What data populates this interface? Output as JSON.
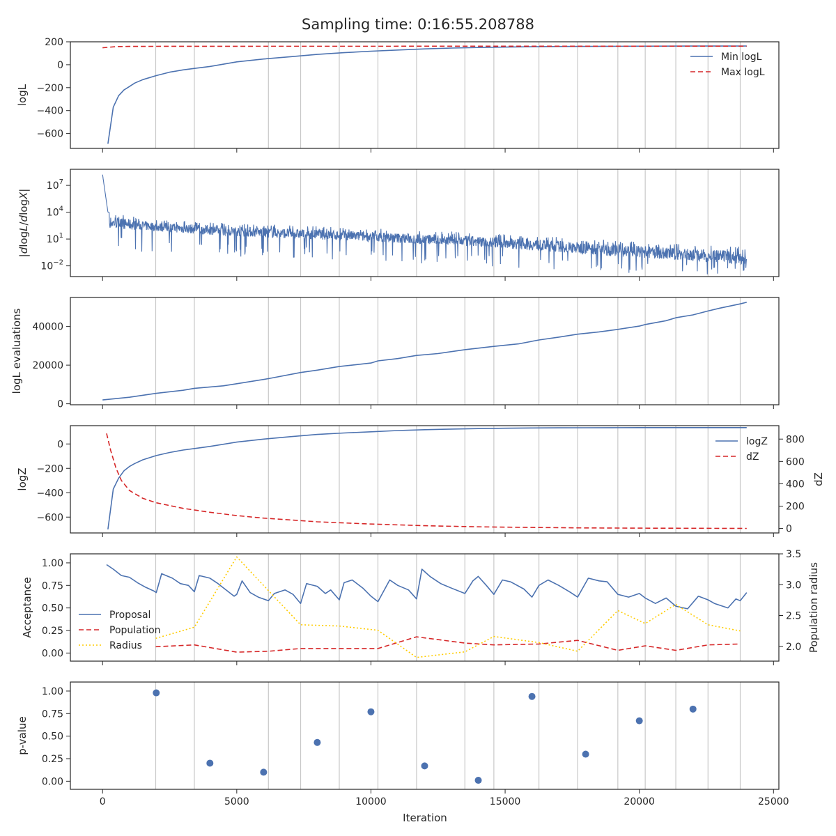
{
  "title": "Sampling time: 0:16:55.208788",
  "colors": {
    "blue": "#4c72b0",
    "red": "#d62728",
    "yellow": "#ffcc00",
    "insertion_line": "#c8c8c8",
    "axis": "#262626"
  },
  "x_axis": {
    "label": "Iteration",
    "lim": [
      -1200,
      25200
    ],
    "ticks": [
      0,
      5000,
      10000,
      15000,
      20000,
      25000
    ],
    "tick_labels": [
      "0",
      "5000",
      "10000",
      "15000",
      "20000",
      "25000"
    ]
  },
  "insertion_iterations": [
    1980,
    3420,
    6180,
    7380,
    8820,
    10260,
    11700,
    13500,
    14580,
    16260,
    17700,
    19200,
    20220,
    21360,
    22560,
    23760
  ],
  "chart_data": [
    {
      "type": "line",
      "panel": "logL",
      "ylabel": "logL",
      "ylim": [
        -730,
        200
      ],
      "yticks": [
        -600,
        -400,
        -200,
        0,
        200
      ],
      "ytick_labels": [
        "−600",
        "−400",
        "−200",
        "0",
        "200"
      ],
      "legend": "top-right",
      "series": [
        {
          "name": "Min logL",
          "color": "blue",
          "style": "solid",
          "x": [
            200,
            400,
            600,
            800,
            1000,
            1200,
            1500,
            2000,
            2500,
            3000,
            3500,
            4000,
            5000,
            6000,
            7000,
            8000,
            9000,
            10000,
            11000,
            12000,
            13000,
            14000,
            15000,
            16000,
            17000,
            18000,
            19000,
            20000,
            21000,
            22000,
            23000,
            24000
          ],
          "y": [
            -690,
            -370,
            -270,
            -220,
            -190,
            -160,
            -130,
            -95,
            -65,
            -45,
            -30,
            -15,
            25,
            50,
            70,
            90,
            105,
            118,
            128,
            138,
            145,
            150,
            154,
            157,
            159,
            160,
            161,
            162,
            162.5,
            163,
            163,
            163
          ]
        },
        {
          "name": "Max logL",
          "color": "red",
          "style": "dashed",
          "x": [
            0,
            500,
            1000,
            3000,
            24000
          ],
          "y": [
            148,
            158,
            160,
            161,
            162
          ]
        }
      ]
    },
    {
      "type": "line",
      "panel": "dlogL/dlogX",
      "ylabel": "|dlogL/dlogX|",
      "scale": "log",
      "ylim_log10": [
        -3.2,
        8.8
      ],
      "yticks_log10": [
        -2,
        1,
        4,
        7
      ],
      "ytick_labels": [
        "10^-2",
        "10^1",
        "10^4",
        "10^7"
      ],
      "series": [
        {
          "name": "",
          "color": "blue",
          "style": "solid",
          "envelope_log10": {
            "x": [
              0,
              200,
              2000,
              5000,
              10000,
              15000,
              20000,
              24000
            ],
            "upper": [
              8.2,
              4.0,
              3.2,
              2.8,
              2.2,
              1.6,
              0.7,
              0.1
            ],
            "median": [
              5.5,
              2.8,
              2.3,
              1.8,
              1.2,
              0.5,
              -0.5,
              -1.2
            ],
            "lower": [
              1.0,
              0.0,
              -0.6,
              -1.0,
              -1.6,
              -2.2,
              -2.9,
              -3.0
            ]
          }
        }
      ]
    },
    {
      "type": "line",
      "panel": "logL evaluations",
      "ylabel": "logL evaluations",
      "ylim": [
        -500,
        55000
      ],
      "yticks": [
        0,
        20000,
        40000
      ],
      "ytick_labels": [
        "0",
        "20000",
        "40000"
      ],
      "series": [
        {
          "name": "",
          "color": "blue",
          "style": "solid",
          "x": [
            0,
            1000,
            2000,
            3000,
            3420,
            4500,
            5000,
            6180,
            7380,
            8000,
            8820,
            10000,
            10260,
            11000,
            11700,
            12500,
            13500,
            14580,
            15500,
            16260,
            17000,
            17700,
            18500,
            19200,
            20000,
            20220,
            21000,
            21360,
            22000,
            22560,
            23000,
            23760,
            24000
          ],
          "y": [
            2000,
            3400,
            5400,
            7000,
            8000,
            9300,
            10400,
            13000,
            16200,
            17400,
            19300,
            21100,
            22200,
            23400,
            25000,
            26000,
            28000,
            29700,
            31000,
            33000,
            34500,
            36000,
            37200,
            38500,
            40200,
            41000,
            43000,
            44500,
            46000,
            48000,
            49500,
            51700,
            52500
          ]
        }
      ]
    },
    {
      "type": "line",
      "panel": "logZ",
      "ylabel": "logZ",
      "ylim": [
        -730,
        150
      ],
      "yticks": [
        -600,
        -400,
        -200,
        0
      ],
      "ytick_labels": [
        "−600",
        "−400",
        "−200",
        "0"
      ],
      "y2label": "dZ",
      "y2lim": [
        -40,
        920
      ],
      "y2ticks": [
        0,
        200,
        400,
        600,
        800
      ],
      "y2tick_labels": [
        "0",
        "200",
        "400",
        "600",
        "800"
      ],
      "legend": "top-right",
      "series": [
        {
          "name": "logZ",
          "color": "blue",
          "style": "solid",
          "axis": "left",
          "x": [
            200,
            400,
            600,
            800,
            1000,
            1200,
            1500,
            2000,
            2500,
            3000,
            3500,
            4000,
            5000,
            6000,
            7000,
            8000,
            9000,
            10000,
            11000,
            12000,
            13000,
            14000,
            15000,
            16000,
            17000,
            18000,
            19000,
            20000,
            21000,
            22000,
            23000,
            24000
          ],
          "y": [
            -700,
            -370,
            -280,
            -220,
            -185,
            -160,
            -130,
            -95,
            -70,
            -50,
            -35,
            -20,
            15,
            40,
            60,
            78,
            90,
            100,
            110,
            117,
            122,
            126,
            129,
            131,
            132,
            133,
            133.5,
            134,
            134,
            134,
            134,
            134
          ]
        },
        {
          "name": "dZ",
          "color": "red",
          "style": "dashed",
          "axis": "right",
          "x": [
            150,
            300,
            500,
            700,
            1000,
            1500,
            2000,
            3000,
            4000,
            5000,
            6000,
            8000,
            10000,
            12000,
            14000,
            16000,
            18000,
            20000,
            22000,
            24000
          ],
          "y": [
            850,
            700,
            540,
            430,
            340,
            270,
            230,
            180,
            145,
            115,
            93,
            60,
            40,
            25,
            15,
            9,
            5,
            3,
            1.5,
            0.5
          ]
        }
      ]
    },
    {
      "type": "line",
      "panel": "acceptance",
      "ylabel": "Acceptance",
      "ylim": [
        -0.09,
        1.1
      ],
      "yticks": [
        0.0,
        0.25,
        0.5,
        0.75,
        1.0
      ],
      "ytick_labels": [
        "0.00",
        "0.25",
        "0.50",
        "0.75",
        "1.00"
      ],
      "y2label": "Population radius",
      "y2lim": [
        1.76,
        3.5
      ],
      "y2ticks": [
        2.0,
        2.5,
        3.0,
        3.5
      ],
      "y2tick_labels": [
        "2.0",
        "2.5",
        "3.0",
        "3.5"
      ],
      "legend": "center-left",
      "series": [
        {
          "name": "Proposal",
          "color": "blue",
          "style": "solid",
          "axis": "left",
          "x": [
            150,
            400,
            700,
            1000,
            1300,
            1600,
            1900,
            2000,
            2200,
            2600,
            2900,
            3200,
            3420,
            3600,
            4000,
            4300,
            4600,
            4900,
            5000,
            5200,
            5500,
            5800,
            6180,
            6400,
            6800,
            7100,
            7380,
            7600,
            8000,
            8300,
            8500,
            8820,
            9000,
            9300,
            9700,
            10000,
            10260,
            10700,
            11000,
            11400,
            11700,
            11900,
            12200,
            12600,
            13000,
            13500,
            13800,
            14000,
            14300,
            14580,
            14900,
            15200,
            15700,
            16000,
            16260,
            16600,
            17000,
            17400,
            17700,
            18100,
            18500,
            18800,
            19200,
            19600,
            20000,
            20220,
            20600,
            21000,
            21360,
            21800,
            22200,
            22560,
            22800,
            23300,
            23600,
            23760,
            24000
          ],
          "y": [
            0.98,
            0.93,
            0.86,
            0.84,
            0.78,
            0.73,
            0.69,
            0.67,
            0.88,
            0.83,
            0.77,
            0.75,
            0.68,
            0.86,
            0.83,
            0.77,
            0.7,
            0.63,
            0.65,
            0.8,
            0.67,
            0.62,
            0.58,
            0.66,
            0.7,
            0.65,
            0.55,
            0.77,
            0.74,
            0.66,
            0.7,
            0.59,
            0.78,
            0.81,
            0.72,
            0.63,
            0.57,
            0.81,
            0.75,
            0.7,
            0.6,
            0.93,
            0.85,
            0.77,
            0.72,
            0.66,
            0.8,
            0.85,
            0.75,
            0.65,
            0.81,
            0.79,
            0.71,
            0.62,
            0.75,
            0.81,
            0.75,
            0.68,
            0.62,
            0.83,
            0.8,
            0.79,
            0.65,
            0.62,
            0.66,
            0.61,
            0.55,
            0.61,
            0.52,
            0.49,
            0.63,
            0.59,
            0.55,
            0.5,
            0.6,
            0.58,
            0.67
          ]
        },
        {
          "name": "Population",
          "color": "red",
          "style": "dashed",
          "axis": "left",
          "x": [
            1980,
            3420,
            5000,
            6180,
            7380,
            8820,
            10260,
            11700,
            13500,
            14580,
            16260,
            17700,
            19200,
            20220,
            21360,
            22560,
            23760
          ],
          "y": [
            0.07,
            0.09,
            0.01,
            0.02,
            0.05,
            0.05,
            0.05,
            0.18,
            0.11,
            0.09,
            0.1,
            0.14,
            0.03,
            0.08,
            0.03,
            0.09,
            0.1
          ]
        },
        {
          "name": "Radius",
          "color": "yellow",
          "style": "dotted",
          "axis": "right",
          "x": [
            1980,
            3420,
            5000,
            7380,
            8820,
            10260,
            11700,
            13500,
            14580,
            16260,
            17700,
            19200,
            20220,
            21360,
            22560,
            23760
          ],
          "y": [
            2.13,
            2.31,
            3.45,
            2.35,
            2.33,
            2.26,
            1.82,
            1.91,
            2.16,
            2.06,
            1.92,
            2.58,
            2.37,
            2.68,
            2.35,
            2.25
          ]
        }
      ]
    },
    {
      "type": "scatter",
      "panel": "p-value",
      "ylabel": "p-value",
      "ylim": [
        -0.09,
        1.1
      ],
      "yticks": [
        0.0,
        0.25,
        0.5,
        0.75,
        1.0
      ],
      "ytick_labels": [
        "0.00",
        "0.25",
        "0.50",
        "0.75",
        "1.00"
      ],
      "series": [
        {
          "name": "",
          "color": "blue",
          "x": [
            2000,
            4000,
            6000,
            8000,
            10000,
            12000,
            14000,
            16000,
            18000,
            20000,
            22000
          ],
          "y": [
            0.98,
            0.2,
            0.1,
            0.43,
            0.77,
            0.17,
            0.01,
            0.94,
            0.3,
            0.67,
            0.8
          ]
        }
      ]
    }
  ]
}
